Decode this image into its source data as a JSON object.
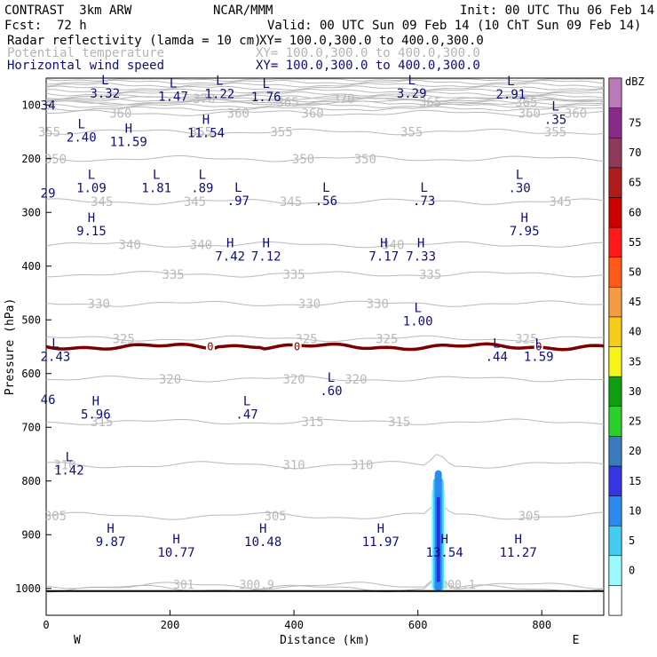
{
  "header": {
    "model": "CONTRAST  3km ARW",
    "org": "NCAR/MMM",
    "init": "Init: 00 UTC Thu 06 Feb 14",
    "fcst_label": "Fcst:",
    "fcst_value": "72 h",
    "valid": "Valid: 00 UTC Sun 09 Feb 14 (10 ChT Sun 09 Feb 14)",
    "fields": [
      {
        "name": "Radar reflectivity (lamda = 10 cm)",
        "xy": "XY= 100.0,300.0 to 400.0,300.0"
      },
      {
        "name": "Potential temperature",
        "xy": "XY= 100.0,300.0 to 400.0,300.0"
      },
      {
        "name": "Horizontal wind speed",
        "xy": "XY= 100.0,300.0 to 400.0,300.0"
      }
    ]
  },
  "colors": {
    "theta": "#b9b9b9",
    "wind_text": "#0d0d7a",
    "freezing": "#7a0000",
    "reflectivity_core": "#2233dd"
  },
  "chart_data": {
    "type": "cross-section",
    "xlabel": "Distance (km)",
    "ylabel": "Pressure (hPa)",
    "xlim": [
      0,
      900
    ],
    "ylim": [
      1050,
      50
    ],
    "x_ticks": [
      0,
      200,
      400,
      600,
      800
    ],
    "y_ticks": [
      100,
      200,
      300,
      400,
      500,
      600,
      700,
      800,
      900,
      1000
    ],
    "west_label": "W",
    "east_label": "E",
    "colorbar": {
      "unit": "dBZ",
      "levels": [
        0,
        5,
        10,
        15,
        20,
        25,
        30,
        35,
        40,
        45,
        50,
        55,
        60,
        65,
        70,
        75
      ],
      "colors": [
        "#ffffff",
        "#9bfaff",
        "#43cdf5",
        "#2b8af0",
        "#3535e6",
        "#3a7bc0",
        "#2ad12a",
        "#0f9e0f",
        "#f5f519",
        "#f5cc19",
        "#f59a45",
        "#ff5a1a",
        "#ff1a1a",
        "#cc0000",
        "#b01c1c",
        "#8f3a5a",
        "#8a2a8a",
        "#b87ab8"
      ]
    },
    "theta_contours": [
      {
        "label": "301",
        "p": 995
      },
      {
        "label": "300.9",
        "p": 1000
      },
      {
        "label": "305",
        "p": 865
      },
      {
        "label": "310",
        "p": 770
      },
      {
        "label": "315",
        "p": 690
      },
      {
        "label": "320",
        "p": 610
      },
      {
        "label": "325",
        "p": 535
      },
      {
        "label": "330",
        "p": 470
      },
      {
        "label": "335",
        "p": 415
      },
      {
        "label": "340",
        "p": 360
      },
      {
        "label": "345",
        "p": 280
      },
      {
        "label": "350",
        "p": 200
      },
      {
        "label": "355",
        "p": 150
      },
      {
        "label": "360",
        "p": 115
      },
      {
        "label": "365",
        "p": 95
      },
      {
        "label": "370",
        "p": 88
      }
    ],
    "theta_label_x_km": [
      {
        "label": "305",
        "xs": [
          15,
          370,
          780
        ]
      },
      {
        "label": "310",
        "xs": [
          30,
          400,
          510
        ]
      },
      {
        "label": "315",
        "xs": [
          90,
          430,
          570
        ]
      },
      {
        "label": "320",
        "xs": [
          200,
          400,
          500
        ]
      },
      {
        "label": "325",
        "xs": [
          125,
          420,
          550,
          775
        ]
      },
      {
        "label": "330",
        "xs": [
          85,
          425,
          535
        ]
      },
      {
        "label": "335",
        "xs": [
          205,
          400,
          620
        ]
      },
      {
        "label": "340",
        "xs": [
          135,
          250,
          560
        ]
      },
      {
        "label": "345",
        "xs": [
          90,
          240,
          395,
          830
        ]
      },
      {
        "label": "350",
        "xs": [
          15,
          415,
          515
        ]
      },
      {
        "label": "355",
        "xs": [
          5,
          250,
          380,
          590,
          822
        ]
      },
      {
        "label": "360",
        "xs": [
          120,
          310,
          430,
          780,
          855
        ]
      },
      {
        "label": "365",
        "xs": [
          390,
          620,
          775
        ]
      },
      {
        "label": "370",
        "xs": [
          255,
          480
        ]
      }
    ],
    "freezing_level": {
      "label": "0",
      "p": 550
    },
    "freezing_label_x_km": [
      265,
      405,
      795
    ],
    "wind_labels": [
      {
        "type": "L",
        "value": "3.32",
        "x": 95,
        "p": 78
      },
      {
        "type": "L",
        "value": "1.47",
        "x": 205,
        "p": 84
      },
      {
        "type": "L",
        "value": "1.22",
        "x": 280,
        "p": 79
      },
      {
        "type": "L",
        "value": "1.76",
        "x": 355,
        "p": 85
      },
      {
        "type": "L",
        "value": "3.29",
        "x": 590,
        "p": 78
      },
      {
        "type": "L",
        "value": "2.91",
        "x": 750,
        "p": 80
      },
      {
        "type": "",
        "value": "34",
        "x": 3,
        "p": 100
      },
      {
        "type": "L",
        "value": "2.40",
        "x": 57,
        "p": 160
      },
      {
        "type": "H",
        "value": "11.59",
        "x": 133,
        "p": 168
      },
      {
        "type": "H",
        "value": "11.54",
        "x": 258,
        "p": 152
      },
      {
        "type": "L",
        "value": ".35",
        "x": 822,
        "p": 127
      },
      {
        "type": "",
        "value": "29",
        "x": 3,
        "p": 264
      },
      {
        "type": "L",
        "value": "1.09",
        "x": 73,
        "p": 254
      },
      {
        "type": "L",
        "value": "1.81",
        "x": 178,
        "p": 254
      },
      {
        "type": "L",
        "value": ".89",
        "x": 252,
        "p": 254
      },
      {
        "type": "L",
        "value": ".97",
        "x": 310,
        "p": 278
      },
      {
        "type": "L",
        "value": ".56",
        "x": 452,
        "p": 278
      },
      {
        "type": "L",
        "value": ".73",
        "x": 610,
        "p": 278
      },
      {
        "type": "L",
        "value": ".30",
        "x": 764,
        "p": 254
      },
      {
        "type": "H",
        "value": "9.15",
        "x": 73,
        "p": 334
      },
      {
        "type": "H",
        "value": "7.42",
        "x": 297,
        "p": 381
      },
      {
        "type": "H",
        "value": "7.12",
        "x": 355,
        "p": 381
      },
      {
        "type": "H",
        "value": "7.17",
        "x": 545,
        "p": 381
      },
      {
        "type": "H",
        "value": "7.33",
        "x": 605,
        "p": 381
      },
      {
        "type": "H",
        "value": "7.95",
        "x": 772,
        "p": 334
      },
      {
        "type": "L",
        "value": "1.00",
        "x": 600,
        "p": 502
      },
      {
        "type": "L",
        "value": "2.43",
        "x": 15,
        "p": 568
      },
      {
        "type": "L",
        "value": ".44",
        "x": 727,
        "p": 568
      },
      {
        "type": "L",
        "value": "1.59",
        "x": 795,
        "p": 568
      },
      {
        "type": "L",
        "value": ".60",
        "x": 460,
        "p": 632
      },
      {
        "type": "",
        "value": "46",
        "x": 3,
        "p": 648
      },
      {
        "type": "H",
        "value": "5.96",
        "x": 80,
        "p": 676
      },
      {
        "type": "L",
        "value": ".47",
        "x": 324,
        "p": 676
      },
      {
        "type": "L",
        "value": "1.42",
        "x": 37,
        "p": 780
      },
      {
        "type": "H",
        "value": "9.87",
        "x": 104,
        "p": 913
      },
      {
        "type": "H",
        "value": "10.77",
        "x": 210,
        "p": 933
      },
      {
        "type": "H",
        "value": "10.48",
        "x": 350,
        "p": 913
      },
      {
        "type": "H",
        "value": "11.97",
        "x": 540,
        "p": 913
      },
      {
        "type": "H",
        "value": "13.54",
        "x": 643,
        "p": 933
      },
      {
        "type": "H",
        "value": "11.27",
        "x": 762,
        "p": 933
      }
    ],
    "surface_pressure_hpa": 1005,
    "reflectivity_core": {
      "x_center": 633,
      "p_top": 780,
      "max_dbz": 20
    }
  }
}
